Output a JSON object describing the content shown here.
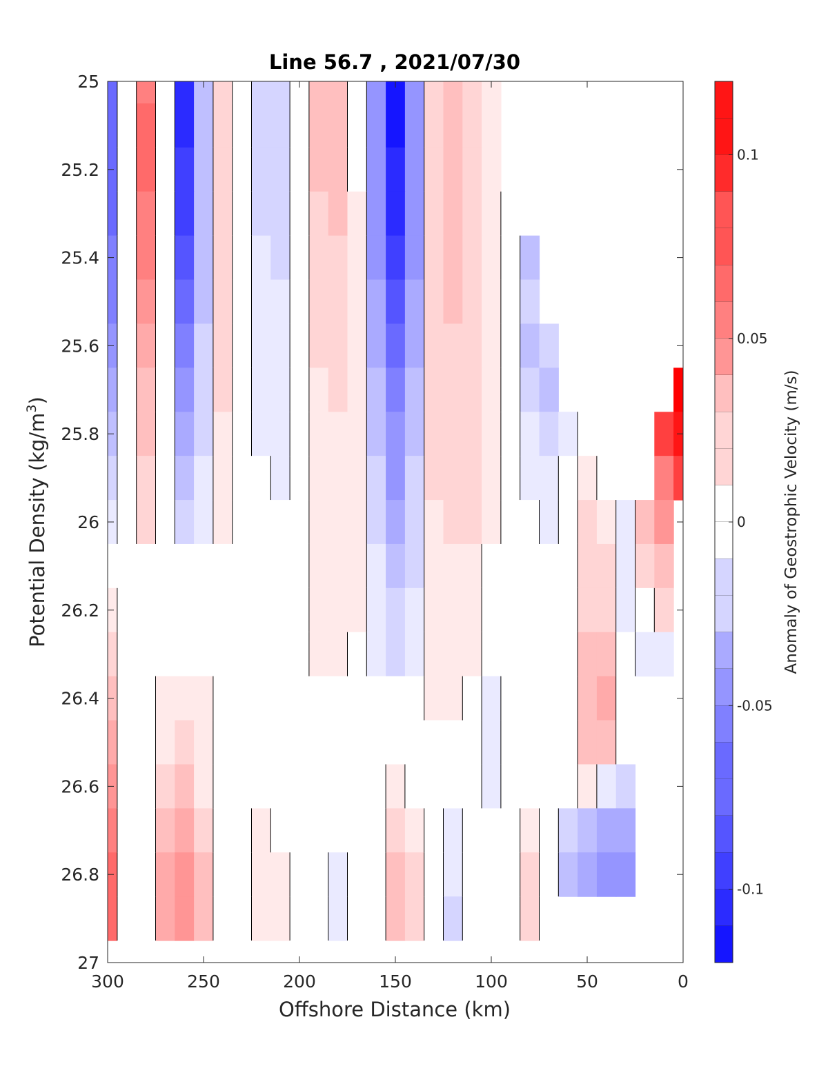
{
  "chart_data": {
    "type": "heatmap",
    "title": "Line 56.7 , 2021/07/30",
    "xlabel": "Offshore Distance (km)",
    "ylabel": "Potential Density (kg/m",
    "ylabel_sup": "3",
    "ylabel_close": ")",
    "colorbar_label": "Anomaly of Geostrophic Velocity (m/s)",
    "xlim": [
      300,
      0
    ],
    "ylim": [
      25,
      27
    ],
    "clim": [
      -0.12,
      0.12
    ],
    "x_ticks": [
      300,
      250,
      200,
      150,
      100,
      50,
      0
    ],
    "x_tick_labels": [
      "300",
      "250",
      "200",
      "150",
      "100",
      "50",
      "0"
    ],
    "y_ticks": [
      25,
      25.2,
      25.4,
      25.6,
      25.8,
      26,
      26.2,
      26.4,
      26.6,
      26.8,
      27
    ],
    "y_tick_labels": [
      "25",
      "25.2",
      "25.4",
      "25.6",
      "25.8",
      "26",
      "26.2",
      "26.4",
      "26.6",
      "26.8",
      "27"
    ],
    "colorbar_ticks": [
      0.1,
      0.05,
      0,
      -0.05,
      -0.1
    ],
    "colorbar_tick_labels": [
      "0.1",
      "0.05",
      "0",
      "-0.05",
      "-0.1"
    ],
    "colors": {
      "positive": "#ff0000",
      "negative": "#0000ff",
      "zero": "#ffffff",
      "contour": "#000000"
    },
    "grid": false,
    "contour_levels": [
      0
    ],
    "x": [
      300,
      290,
      280,
      270,
      260,
      250,
      240,
      230,
      220,
      210,
      200,
      190,
      180,
      170,
      160,
      150,
      140,
      130,
      120,
      110,
      100,
      90,
      80,
      70,
      60,
      50,
      40,
      30,
      20,
      10,
      0
    ],
    "y": [
      25.0,
      25.1,
      25.2,
      25.3,
      25.4,
      25.5,
      25.6,
      25.7,
      25.8,
      25.9,
      26.0,
      26.1,
      26.2,
      26.3,
      26.4,
      26.5,
      26.6,
      26.7,
      26.8,
      26.9
    ],
    "values": [
      [
        -0.07,
        0.0,
        0.06,
        0.0,
        -0.1,
        -0.03,
        0.02,
        0.0,
        -0.02,
        -0.02,
        0.0,
        0.03,
        0.03,
        0.0,
        -0.05,
        -0.11,
        -0.05,
        0.02,
        0.03,
        0.02,
        0.01,
        null,
        null,
        null,
        null,
        null,
        null,
        null,
        null,
        null,
        null
      ],
      [
        -0.07,
        0.0,
        0.07,
        0.0,
        -0.1,
        -0.03,
        0.02,
        0.0,
        -0.02,
        -0.02,
        0.0,
        0.03,
        0.03,
        0.0,
        -0.05,
        -0.11,
        -0.05,
        0.02,
        0.03,
        0.02,
        0.01,
        null,
        null,
        null,
        null,
        null,
        null,
        null,
        null,
        null,
        null
      ],
      [
        -0.07,
        0.0,
        0.07,
        0.0,
        -0.09,
        -0.03,
        0.02,
        0.0,
        -0.02,
        -0.02,
        0.0,
        0.03,
        0.03,
        0.0,
        -0.05,
        -0.1,
        -0.05,
        0.02,
        0.03,
        0.02,
        0.01,
        null,
        null,
        null,
        null,
        null,
        null,
        null,
        null,
        null,
        null
      ],
      [
        -0.07,
        0.0,
        0.06,
        0.0,
        -0.09,
        -0.03,
        0.02,
        0.0,
        -0.02,
        -0.02,
        0.0,
        0.02,
        0.03,
        0.01,
        -0.05,
        -0.1,
        -0.05,
        0.02,
        0.03,
        0.02,
        0.01,
        0.0,
        null,
        null,
        null,
        null,
        null,
        null,
        null,
        null,
        null
      ],
      [
        -0.06,
        0.0,
        0.06,
        0.0,
        -0.08,
        -0.03,
        0.02,
        0.0,
        -0.01,
        -0.02,
        0.0,
        0.02,
        0.02,
        0.01,
        -0.05,
        -0.09,
        -0.05,
        0.02,
        0.03,
        0.02,
        0.01,
        0.0,
        -0.03,
        null,
        null,
        null,
        null,
        null,
        null,
        null,
        null
      ],
      [
        -0.06,
        0.0,
        0.05,
        0.0,
        -0.07,
        -0.03,
        0.02,
        0.0,
        -0.01,
        -0.01,
        0.0,
        0.02,
        0.02,
        0.01,
        -0.04,
        -0.08,
        -0.04,
        0.02,
        0.03,
        0.02,
        0.01,
        0.0,
        -0.02,
        null,
        null,
        null,
        null,
        null,
        null,
        null,
        null
      ],
      [
        -0.05,
        0.0,
        0.04,
        0.0,
        -0.06,
        -0.02,
        0.02,
        0.0,
        -0.01,
        -0.01,
        0.0,
        0.02,
        0.02,
        0.01,
        -0.04,
        -0.07,
        -0.04,
        0.02,
        0.02,
        0.02,
        0.01,
        0.0,
        -0.03,
        -0.02,
        null,
        null,
        null,
        null,
        null,
        null,
        null
      ],
      [
        -0.04,
        0.0,
        0.03,
        0.0,
        -0.05,
        -0.02,
        0.02,
        0.0,
        -0.01,
        -0.01,
        0.0,
        0.01,
        0.02,
        0.01,
        -0.03,
        -0.06,
        -0.03,
        0.02,
        0.02,
        0.02,
        0.01,
        0.0,
        -0.02,
        -0.03,
        null,
        null,
        null,
        null,
        null,
        null,
        0.12
      ],
      [
        -0.03,
        0.0,
        0.03,
        0.0,
        -0.04,
        -0.02,
        0.01,
        0.0,
        -0.01,
        -0.01,
        0.0,
        0.01,
        0.01,
        0.01,
        -0.03,
        -0.05,
        -0.03,
        0.02,
        0.02,
        0.02,
        0.01,
        0.0,
        -0.01,
        -0.02,
        -0.01,
        0.0,
        null,
        null,
        null,
        0.09,
        0.11
      ],
      [
        -0.02,
        0.0,
        0.02,
        0.0,
        -0.03,
        -0.01,
        0.01,
        0.0,
        0.0,
        -0.01,
        0.0,
        0.01,
        0.01,
        0.01,
        -0.02,
        -0.05,
        -0.02,
        0.02,
        0.02,
        0.02,
        0.01,
        0.0,
        -0.01,
        -0.01,
        0.0,
        0.01,
        0.0,
        null,
        null,
        0.06,
        0.09
      ],
      [
        -0.01,
        0.0,
        0.02,
        0.0,
        -0.02,
        -0.01,
        0.01,
        0.0,
        0.0,
        0.0,
        0.0,
        0.01,
        0.01,
        0.01,
        -0.02,
        -0.04,
        -0.02,
        0.01,
        0.02,
        0.02,
        0.01,
        0.0,
        0.0,
        -0.01,
        0.0,
        0.02,
        0.01,
        -0.01,
        0.03,
        0.05,
        null
      ],
      [
        0.0,
        0.0,
        0.0,
        0.0,
        0.0,
        0.0,
        0.0,
        0.0,
        0.0,
        0.0,
        0.0,
        0.01,
        0.01,
        0.01,
        -0.01,
        -0.03,
        -0.02,
        0.01,
        0.01,
        0.01,
        0.0,
        0.0,
        0.0,
        0.0,
        0.0,
        0.02,
        0.02,
        -0.01,
        0.02,
        0.03,
        null
      ],
      [
        0.01,
        0.0,
        0.0,
        0.0,
        0.0,
        0.0,
        0.0,
        0.0,
        0.0,
        0.0,
        0.0,
        0.01,
        0.01,
        0.01,
        -0.01,
        -0.02,
        -0.01,
        0.01,
        0.01,
        0.01,
        0.0,
        0.0,
        0.0,
        0.0,
        0.0,
        0.02,
        0.02,
        -0.01,
        0.0,
        0.02,
        null
      ],
      [
        0.02,
        0.0,
        0.0,
        0.0,
        0.0,
        0.0,
        0.0,
        0.0,
        0.0,
        0.0,
        0.0,
        0.01,
        0.01,
        0.0,
        -0.01,
        -0.02,
        -0.01,
        0.01,
        0.01,
        0.01,
        0.0,
        0.0,
        0.0,
        0.0,
        0.0,
        0.03,
        0.03,
        0.0,
        -0.01,
        -0.01,
        null
      ],
      [
        0.03,
        0.0,
        0.0,
        0.01,
        0.01,
        0.01,
        0.0,
        0.0,
        0.0,
        0.0,
        0.0,
        0.0,
        0.0,
        0.0,
        0.0,
        0.0,
        0.0,
        0.01,
        0.01,
        0.0,
        -0.01,
        0.0,
        0.0,
        0.0,
        0.0,
        0.03,
        0.04,
        0.0,
        null,
        null,
        null
      ],
      [
        0.04,
        0.0,
        0.0,
        0.01,
        0.02,
        0.01,
        0.0,
        0.0,
        0.0,
        0.0,
        0.0,
        0.0,
        0.0,
        0.0,
        0.0,
        0.0,
        0.0,
        0.0,
        0.0,
        0.0,
        -0.01,
        0.0,
        0.0,
        0.0,
        0.0,
        0.03,
        0.03,
        0.0,
        null,
        null,
        null
      ],
      [
        0.05,
        0.0,
        0.0,
        0.02,
        0.03,
        0.01,
        0.0,
        0.0,
        0.0,
        0.0,
        0.0,
        0.0,
        0.0,
        0.0,
        0.0,
        0.01,
        0.0,
        0.0,
        0.0,
        0.0,
        -0.01,
        0.0,
        0.0,
        0.0,
        0.0,
        0.01,
        -0.01,
        -0.02,
        null,
        null,
        null
      ],
      [
        0.06,
        0.0,
        0.0,
        0.03,
        0.04,
        0.02,
        0.0,
        0.0,
        0.01,
        0.0,
        0.0,
        0.0,
        0.0,
        0.0,
        0.0,
        0.02,
        0.01,
        0.0,
        -0.01,
        0.0,
        0.0,
        0.0,
        0.01,
        0.0,
        -0.02,
        -0.03,
        -0.04,
        -0.04,
        null,
        null,
        null
      ],
      [
        0.07,
        0.0,
        0.0,
        0.04,
        0.05,
        0.03,
        0.0,
        0.0,
        0.01,
        0.01,
        0.0,
        0.0,
        -0.01,
        0.0,
        0.0,
        0.03,
        0.02,
        0.0,
        -0.01,
        0.0,
        0.0,
        0.0,
        0.02,
        0.0,
        -0.03,
        -0.04,
        -0.05,
        -0.05,
        null,
        null,
        null
      ],
      [
        0.07,
        0.0,
        0.0,
        0.04,
        0.05,
        0.03,
        0.0,
        0.0,
        0.01,
        0.01,
        0.0,
        0.0,
        -0.01,
        0.0,
        0.0,
        0.03,
        0.02,
        0.0,
        -0.02,
        0.0,
        0.0,
        0.0,
        0.02,
        0.0,
        null,
        null,
        null,
        null,
        null,
        null,
        null
      ]
    ]
  }
}
